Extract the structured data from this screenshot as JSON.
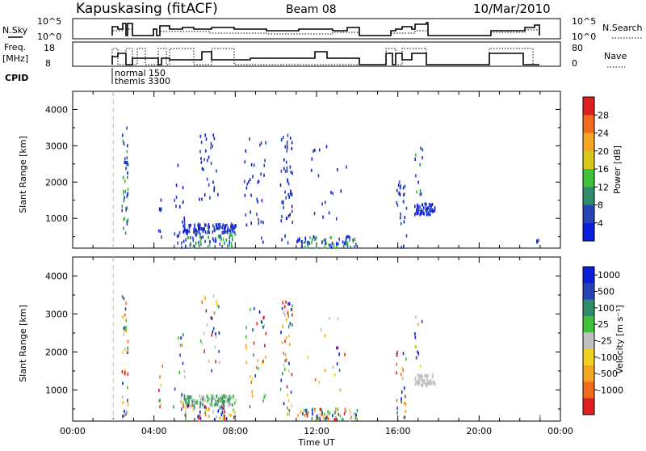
{
  "header": {
    "station": "Kapuskasing (fitACF)",
    "beam": "Beam 08",
    "date": "10/Mar/2010"
  },
  "top_panels": {
    "nsky": {
      "left_label": "N.Sky",
      "left_ticks": [
        "10^5",
        "10^0"
      ],
      "right_ticks": [
        "10^5",
        "10^0"
      ],
      "right_label": "N.Search"
    },
    "freq": {
      "left_label_1": "Freq.",
      "left_label_2": "[MHz]",
      "left_ticks": [
        "18",
        "8"
      ],
      "right_ticks": [
        "80",
        "0"
      ],
      "right_label": "Nave"
    },
    "cpid": {
      "label": "CPID",
      "entries": [
        "normal 150",
        "themis 3300"
      ]
    }
  },
  "colors": {
    "power_scale": [
      "#0a1edc",
      "#2844b4",
      "#2e8c6a",
      "#3fc03a",
      "#d8c81a",
      "#f5a623",
      "#f26b1d",
      "#e02020"
    ],
    "velocity_scale": [
      "#e02020",
      "#f26b1d",
      "#f5a623",
      "#f0d020",
      "#c0c0c0",
      "#3fc03a",
      "#2e8c6a",
      "#2844b4",
      "#0a1edc"
    ]
  },
  "chart_data": [
    {
      "type": "scatter",
      "name": "power",
      "ylabel": "Slant Range [km]",
      "xlim": [
        0,
        24
      ],
      "ylim": [
        180,
        4500
      ],
      "yticks": [
        "1000",
        "2000",
        "3000",
        "4000"
      ],
      "xticks": [
        "00:00",
        "04:00",
        "08:00",
        "12:00",
        "16:00",
        "20:00",
        "00:00"
      ],
      "colorbar": {
        "label": "Power [dB]",
        "ticks": [
          "4",
          "8",
          "12",
          "16",
          "20",
          "24",
          "28"
        ]
      },
      "marker_line_hour": 2.0,
      "clusters": [
        {
          "x": [
            2.4,
            2.7
          ],
          "y": [
            300,
            3500
          ],
          "n": 40,
          "color_index": [
            0,
            3
          ]
        },
        {
          "x": [
            4.2,
            4.4
          ],
          "y": [
            300,
            1700
          ],
          "n": 8,
          "color_index": [
            0,
            1
          ]
        },
        {
          "x": [
            4.9,
            5.6
          ],
          "y": [
            300,
            2500
          ],
          "n": 18,
          "color_index": [
            0,
            1
          ]
        },
        {
          "x": [
            5.4,
            8.0
          ],
          "y": [
            600,
            850
          ],
          "n": 120,
          "color_index": [
            0,
            1
          ]
        },
        {
          "x": [
            5.3,
            8.0
          ],
          "y": [
            200,
            600
          ],
          "n": 60,
          "color_index": [
            0,
            3
          ]
        },
        {
          "x": [
            6.2,
            7.2
          ],
          "y": [
            1500,
            3500
          ],
          "n": 30,
          "color_index": [
            0,
            1
          ]
        },
        {
          "x": [
            8.4,
            9.5
          ],
          "y": [
            300,
            3200
          ],
          "n": 36,
          "color_index": [
            0,
            1
          ]
        },
        {
          "x": [
            10.2,
            10.8
          ],
          "y": [
            300,
            3400
          ],
          "n": 50,
          "color_index": [
            0,
            1
          ]
        },
        {
          "x": [
            11.0,
            14.0
          ],
          "y": [
            200,
            500
          ],
          "n": 70,
          "color_index": [
            0,
            3
          ]
        },
        {
          "x": [
            11.5,
            13.5
          ],
          "y": [
            800,
            3000
          ],
          "n": 18,
          "color_index": [
            0,
            1
          ]
        },
        {
          "x": [
            15.9,
            16.4
          ],
          "y": [
            200,
            2100
          ],
          "n": 25,
          "color_index": [
            0,
            1
          ]
        },
        {
          "x": [
            16.8,
            17.8
          ],
          "y": [
            1100,
            1400
          ],
          "n": 60,
          "color_index": [
            0,
            1
          ]
        },
        {
          "x": [
            16.8,
            17.2
          ],
          "y": [
            1500,
            3000
          ],
          "n": 12,
          "color_index": [
            0,
            3
          ]
        },
        {
          "x": [
            22.8,
            23.0
          ],
          "y": [
            200,
            400
          ],
          "n": 3,
          "color_index": [
            0,
            1
          ]
        }
      ]
    },
    {
      "type": "scatter",
      "name": "velocity",
      "ylabel": "Slant Range [km]",
      "xlabel": "Time UT",
      "xlim": [
        0,
        24
      ],
      "ylim": [
        180,
        4500
      ],
      "yticks": [
        "1000",
        "2000",
        "3000",
        "4000"
      ],
      "xticks": [
        "00:00",
        "04:00",
        "08:00",
        "12:00",
        "16:00",
        "20:00",
        "00:00"
      ],
      "colorbar": {
        "label": "Velocity  [m s⁻¹]",
        "ticks": [
          "1000",
          "500",
          "100",
          "25",
          "-25",
          "-100",
          "-500",
          "-1000"
        ]
      },
      "marker_line_hour": 2.0,
      "clusters": [
        {
          "x": [
            2.4,
            2.7
          ],
          "y": [
            300,
            3500
          ],
          "n": 40,
          "color_index": [
            0,
            8
          ]
        },
        {
          "x": [
            4.2,
            4.4
          ],
          "y": [
            300,
            1700
          ],
          "n": 8,
          "color_index": [
            0,
            8
          ]
        },
        {
          "x": [
            4.9,
            5.6
          ],
          "y": [
            300,
            2500
          ],
          "n": 18,
          "color_index": [
            0,
            8
          ]
        },
        {
          "x": [
            5.4,
            8.0
          ],
          "y": [
            600,
            850
          ],
          "n": 120,
          "color_index": [
            4,
            6
          ]
        },
        {
          "x": [
            5.3,
            8.0
          ],
          "y": [
            200,
            600
          ],
          "n": 60,
          "color_index": [
            0,
            8
          ]
        },
        {
          "x": [
            6.2,
            7.2
          ],
          "y": [
            1500,
            3500
          ],
          "n": 30,
          "color_index": [
            0,
            8
          ]
        },
        {
          "x": [
            8.4,
            9.5
          ],
          "y": [
            300,
            3200
          ],
          "n": 36,
          "color_index": [
            0,
            8
          ]
        },
        {
          "x": [
            10.2,
            10.8
          ],
          "y": [
            300,
            3400
          ],
          "n": 50,
          "color_index": [
            0,
            8
          ]
        },
        {
          "x": [
            11.0,
            14.0
          ],
          "y": [
            200,
            500
          ],
          "n": 70,
          "color_index": [
            0,
            8
          ]
        },
        {
          "x": [
            11.5,
            13.5
          ],
          "y": [
            800,
            3000
          ],
          "n": 18,
          "color_index": [
            0,
            8
          ]
        },
        {
          "x": [
            15.9,
            16.4
          ],
          "y": [
            200,
            2100
          ],
          "n": 25,
          "color_index": [
            0,
            8
          ]
        },
        {
          "x": [
            16.8,
            17.8
          ],
          "y": [
            1100,
            1400
          ],
          "n": 60,
          "color_index": [
            4,
            4
          ]
        },
        {
          "x": [
            16.8,
            17.2
          ],
          "y": [
            1500,
            3000
          ],
          "n": 12,
          "color_index": [
            0,
            8
          ]
        },
        {
          "x": [
            22.8,
            23.0
          ],
          "y": [
            200,
            400
          ],
          "n": 3,
          "color_index": [
            4,
            4
          ]
        }
      ]
    }
  ]
}
